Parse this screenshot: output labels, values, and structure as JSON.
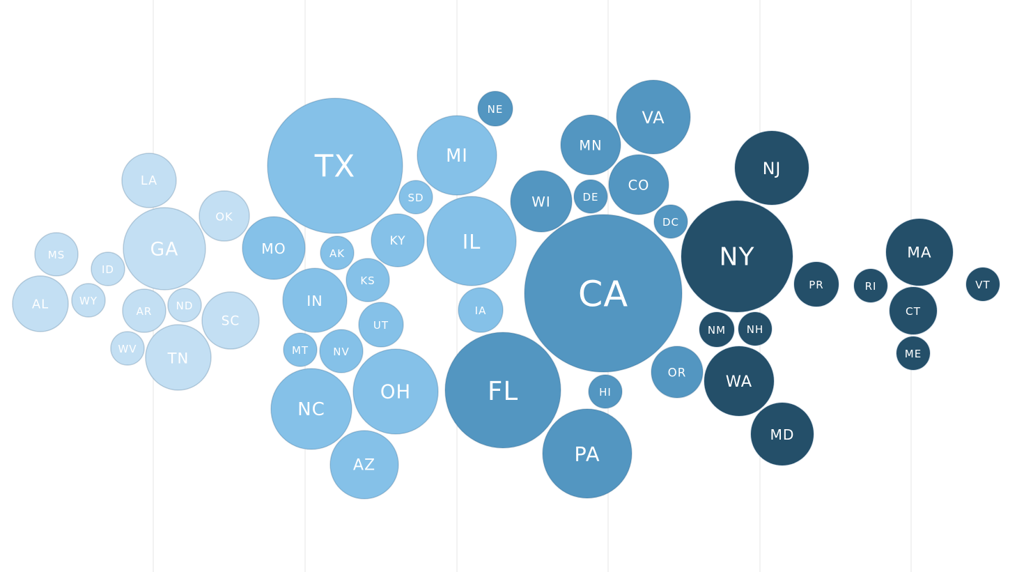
{
  "chart_data": {
    "type": "bubble",
    "series": [
      {
        "color": "#c3dff3",
        "labels": [
          "LA",
          "GA",
          "OK",
          "MS",
          "ID",
          "AL",
          "WY",
          "AR",
          "ND",
          "SC",
          "WV",
          "TN"
        ],
        "values": [
          39,
          59,
          36,
          31,
          24,
          40,
          24,
          31,
          24,
          41,
          24,
          47
        ]
      },
      {
        "color": "#85c1e8",
        "labels": [
          "TX",
          "MI",
          "SD",
          "MO",
          "AK",
          "KY",
          "IL",
          "KS",
          "IN",
          "IA",
          "UT",
          "MT",
          "NV",
          "NC",
          "OH",
          "AZ"
        ],
        "values": [
          97,
          57,
          24,
          45,
          24,
          38,
          64,
          31,
          46,
          32,
          32,
          24,
          31,
          58,
          61,
          49
        ]
      },
      {
        "color": "#5396c1",
        "labels": [
          "NE",
          "MN",
          "VA",
          "WI",
          "DE",
          "CO",
          "DC",
          "CA",
          "FL",
          "OR",
          "HI",
          "PA"
        ],
        "values": [
          25,
          43,
          53,
          44,
          24,
          43,
          24,
          113,
          83,
          37,
          24,
          64
        ]
      },
      {
        "color": "#244f69",
        "labels": [
          "NJ",
          "NY",
          "PR",
          "NM",
          "NH",
          "WA",
          "MD",
          "MA",
          "RI",
          "CT",
          "ME",
          "VT"
        ],
        "values": [
          53,
          80,
          32,
          25,
          24,
          50,
          45,
          48,
          24,
          34,
          24,
          24
        ]
      }
    ]
  }
}
